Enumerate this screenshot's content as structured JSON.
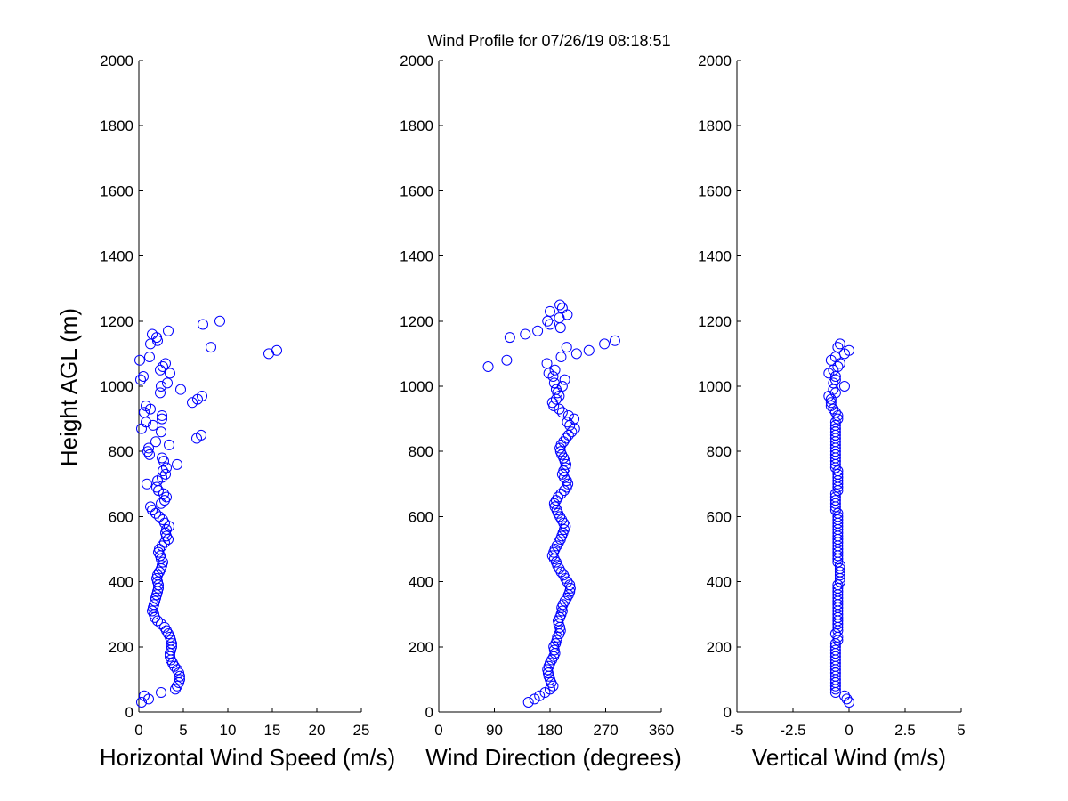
{
  "chart_data": [
    {
      "type": "scatter",
      "title": "Wind Profile for  07/26/19 08:18:51",
      "xlabel": "Horizontal Wind Speed (m/s)",
      "ylabel": "Height AGL (m)",
      "xlim": [
        0,
        25
      ],
      "ylim": [
        0,
        2000
      ],
      "xticks": [
        "0",
        "5",
        "10",
        "15",
        "20",
        "25"
      ],
      "yticks": [
        "0",
        "200",
        "400",
        "600",
        "800",
        "1000",
        "1200",
        "1400",
        "1600",
        "1800",
        "2000"
      ],
      "grid": false,
      "series": [
        {
          "color": "#0000ff",
          "marker": "circle",
          "x": [
            0.3,
            1.1,
            0.6,
            2.5,
            4.1,
            4.3,
            4.5,
            4.6,
            4.6,
            4.5,
            4.3,
            4.0,
            3.8,
            3.6,
            3.5,
            3.5,
            3.6,
            3.7,
            3.7,
            3.6,
            3.5,
            3.3,
            3.1,
            2.9,
            2.5,
            2.1,
            1.8,
            1.7,
            1.5,
            1.6,
            1.7,
            1.8,
            1.9,
            2.0,
            2.1,
            2.2,
            2.2,
            2.1,
            2.0,
            2.1,
            2.3,
            2.5,
            2.6,
            2.7,
            2.5,
            2.4,
            2.2,
            2.3,
            2.6,
            2.9,
            3.3,
            3.1,
            3.0,
            3.1,
            3.4,
            2.9,
            2.7,
            2.3,
            1.9,
            1.5,
            1.3,
            2.5,
            2.9,
            3.1,
            2.8,
            2.2,
            2.0,
            0.9,
            2.1,
            2.6,
            3.0,
            2.7,
            3.1,
            4.3,
            2.8,
            2.6,
            1.2,
            1.0,
            1.1,
            3.4,
            1.9,
            6.5,
            7.0,
            2.5,
            0.3,
            1.6,
            0.8,
            2.6,
            2.6,
            0.6,
            1.3,
            0.8,
            6.0,
            6.6,
            7.1,
            2.4,
            4.7,
            2.5,
            3.2,
            0.2,
            0.5,
            3.5,
            2.4,
            2.7,
            3.0,
            0.1,
            1.2,
            14.6,
            15.5,
            8.1,
            1.3,
            2.1,
            2.0,
            1.5,
            3.3,
            7.2,
            9.1
          ],
          "y": [
            30,
            40,
            50,
            60,
            70,
            80,
            90,
            100,
            110,
            120,
            130,
            140,
            150,
            160,
            170,
            180,
            190,
            200,
            210,
            220,
            230,
            240,
            250,
            260,
            270,
            280,
            290,
            300,
            310,
            320,
            330,
            340,
            350,
            360,
            370,
            380,
            390,
            400,
            410,
            420,
            430,
            440,
            450,
            460,
            470,
            480,
            490,
            500,
            510,
            520,
            530,
            540,
            550,
            560,
            570,
            580,
            590,
            600,
            610,
            620,
            630,
            640,
            650,
            660,
            670,
            680,
            690,
            700,
            710,
            720,
            730,
            740,
            750,
            760,
            770,
            780,
            790,
            800,
            810,
            820,
            830,
            840,
            850,
            860,
            870,
            880,
            890,
            900,
            910,
            920,
            930,
            940,
            950,
            960,
            970,
            980,
            990,
            1000,
            1010,
            1020,
            1030,
            1040,
            1050,
            1060,
            1070,
            1080,
            1090,
            1100,
            1110,
            1120,
            1130,
            1140,
            1150,
            1160,
            1170,
            1190,
            1200
          ]
        }
      ]
    },
    {
      "type": "scatter",
      "xlabel": "Wind Direction (degrees)",
      "ylabel": "",
      "xlim": [
        0,
        360
      ],
      "ylim": [
        0,
        2000
      ],
      "xticks": [
        "0",
        "90",
        "180",
        "270",
        "360"
      ],
      "yticks": [
        "0",
        "200",
        "400",
        "600",
        "800",
        "1000",
        "1200",
        "1400",
        "1600",
        "1800",
        "2000"
      ],
      "grid": false,
      "series": [
        {
          "color": "#0000ff",
          "marker": "circle",
          "x": [
            145,
            155,
            163,
            172,
            180,
            185,
            182,
            180,
            178,
            177,
            176,
            178,
            180,
            183,
            186,
            188,
            187,
            186,
            189,
            191,
            192,
            195,
            197,
            196,
            194,
            193,
            196,
            198,
            200,
            199,
            201,
            204,
            207,
            210,
            212,
            213,
            212,
            208,
            205,
            202,
            198,
            195,
            192,
            190,
            187,
            184,
            186,
            188,
            191,
            194,
            197,
            199,
            201,
            203,
            205,
            202,
            199,
            196,
            193,
            191,
            188,
            187,
            190,
            193,
            198,
            203,
            207,
            209,
            207,
            203,
            200,
            202,
            205,
            206,
            204,
            202,
            199,
            197,
            196,
            198,
            202,
            206,
            210,
            215,
            220,
            212,
            208,
            219,
            210,
            200,
            195,
            186,
            184,
            190,
            195,
            192,
            190,
            200,
            187,
            204,
            185,
            178,
            188,
            80,
            175,
            110,
            198,
            223,
            243,
            207,
            268,
            285,
            115,
            140,
            160,
            197,
            180,
            176,
            195,
            208,
            180,
            200,
            196
          ],
          "y": [
            30,
            40,
            50,
            60,
            70,
            80,
            90,
            100,
            110,
            120,
            130,
            140,
            150,
            160,
            170,
            180,
            190,
            200,
            210,
            220,
            230,
            240,
            250,
            260,
            270,
            280,
            290,
            300,
            310,
            320,
            330,
            340,
            350,
            360,
            370,
            380,
            390,
            400,
            410,
            420,
            430,
            440,
            450,
            460,
            470,
            480,
            490,
            500,
            510,
            520,
            530,
            540,
            550,
            560,
            570,
            580,
            590,
            600,
            610,
            620,
            630,
            640,
            650,
            660,
            670,
            680,
            690,
            700,
            710,
            720,
            730,
            740,
            750,
            760,
            770,
            780,
            790,
            800,
            810,
            820,
            830,
            840,
            850,
            860,
            870,
            880,
            890,
            900,
            910,
            920,
            930,
            940,
            950,
            960,
            970,
            980,
            990,
            1000,
            1010,
            1020,
            1030,
            1040,
            1050,
            1060,
            1070,
            1080,
            1090,
            1100,
            1110,
            1120,
            1130,
            1140,
            1150,
            1160,
            1170,
            1180,
            1190,
            1200,
            1210,
            1220,
            1230,
            1240,
            1250
          ]
        }
      ]
    },
    {
      "type": "scatter",
      "xlabel": "Vertical Wind (m/s)",
      "ylabel": "",
      "xlim": [
        -5,
        5
      ],
      "ylim": [
        0,
        2000
      ],
      "xticks": [
        "-5",
        "-2.5",
        "0",
        "2.5",
        "5"
      ],
      "yticks": [
        "0",
        "200",
        "400",
        "600",
        "800",
        "1000",
        "1200",
        "1400",
        "1600",
        "1800",
        "2000"
      ],
      "grid": false,
      "series": [
        {
          "color": "#0000ff",
          "marker": "circle",
          "x": [
            0.0,
            -0.1,
            -0.2,
            -0.6,
            -0.6,
            -0.6,
            -0.6,
            -0.6,
            -0.6,
            -0.6,
            -0.6,
            -0.6,
            -0.6,
            -0.6,
            -0.6,
            -0.6,
            -0.6,
            -0.6,
            -0.6,
            -0.5,
            -0.5,
            -0.6,
            -0.5,
            -0.5,
            -0.5,
            -0.5,
            -0.5,
            -0.5,
            -0.5,
            -0.5,
            -0.5,
            -0.5,
            -0.5,
            -0.5,
            -0.5,
            -0.5,
            -0.5,
            -0.4,
            -0.4,
            -0.4,
            -0.4,
            -0.4,
            -0.4,
            -0.5,
            -0.5,
            -0.5,
            -0.5,
            -0.5,
            -0.5,
            -0.5,
            -0.5,
            -0.5,
            -0.5,
            -0.5,
            -0.5,
            -0.5,
            -0.5,
            -0.5,
            -0.5,
            -0.6,
            -0.6,
            -0.6,
            -0.6,
            -0.6,
            -0.6,
            -0.5,
            -0.5,
            -0.5,
            -0.5,
            -0.5,
            -0.5,
            -0.5,
            -0.6,
            -0.6,
            -0.6,
            -0.6,
            -0.6,
            -0.6,
            -0.6,
            -0.6,
            -0.6,
            -0.6,
            -0.6,
            -0.6,
            -0.6,
            -0.6,
            -0.6,
            -0.5,
            -0.5,
            -0.6,
            -0.7,
            -0.8,
            -0.8,
            -0.8,
            -0.9,
            -0.6,
            -0.7,
            -0.2,
            -0.7,
            -0.6,
            -0.6,
            -0.9,
            -0.7,
            -0.5,
            -0.4,
            -0.8,
            -0.6,
            -0.2,
            0.0,
            -0.5,
            -0.4
          ],
          "y": [
            30,
            40,
            50,
            60,
            70,
            80,
            90,
            100,
            110,
            120,
            130,
            140,
            150,
            160,
            170,
            180,
            190,
            200,
            210,
            220,
            230,
            240,
            250,
            260,
            270,
            280,
            290,
            300,
            310,
            320,
            330,
            340,
            350,
            360,
            370,
            380,
            390,
            400,
            410,
            420,
            430,
            440,
            450,
            460,
            470,
            480,
            490,
            500,
            510,
            520,
            530,
            540,
            550,
            560,
            570,
            580,
            590,
            600,
            610,
            620,
            630,
            640,
            650,
            660,
            670,
            680,
            690,
            700,
            710,
            720,
            730,
            740,
            750,
            760,
            770,
            780,
            790,
            800,
            810,
            820,
            830,
            840,
            850,
            860,
            870,
            880,
            890,
            900,
            910,
            920,
            930,
            940,
            950,
            960,
            970,
            980,
            990,
            1000,
            1010,
            1020,
            1030,
            1040,
            1050,
            1060,
            1070,
            1080,
            1090,
            1100,
            1110,
            1120,
            1130
          ]
        }
      ]
    }
  ]
}
